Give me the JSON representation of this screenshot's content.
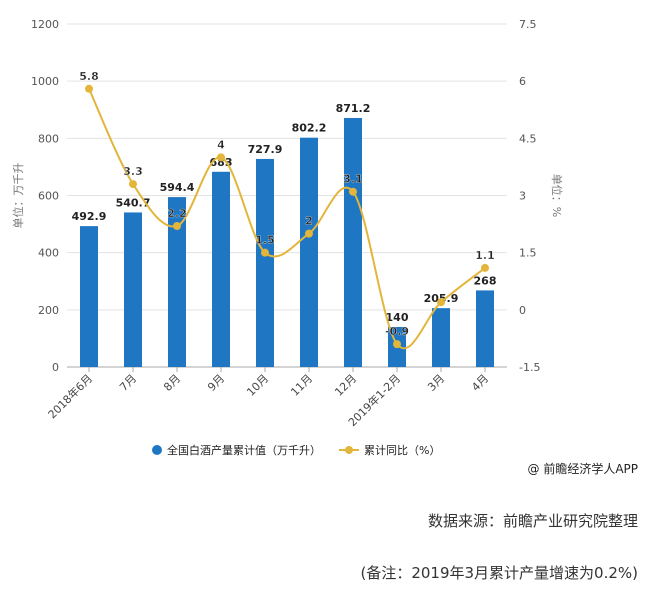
{
  "chart_data": {
    "type": "bar",
    "categories": [
      "2018年6月",
      "7月",
      "8月",
      "9月",
      "10月",
      "11月",
      "12月",
      "2019年1-2月",
      "3月",
      "4月"
    ],
    "series": [
      {
        "name": "全国白酒产量累计值（万千升）",
        "type": "bar",
        "axis": "left",
        "color": "#1f77c4",
        "values": [
          492.9,
          540.7,
          594.4,
          683,
          727.9,
          802.2,
          871.2,
          140,
          205.9,
          268
        ]
      },
      {
        "name": "累计同比（%）",
        "type": "line",
        "axis": "right",
        "color": "#e3b53a",
        "values": [
          5.8,
          3.3,
          2.2,
          4,
          1.5,
          2,
          3.1,
          -0.9,
          0.2,
          1.1
        ],
        "labels": [
          "5.8",
          "3.3",
          "2.2",
          "4",
          "1.5",
          "2",
          "3.1",
          "-0.9",
          "",
          "1.1"
        ]
      }
    ],
    "ylabel": "单位：万千升",
    "y2label": "单位：%",
    "ylim": [
      0,
      1200
    ],
    "yticks": [
      0,
      200,
      400,
      600,
      800,
      1000,
      1200
    ],
    "y2lim": [
      -1.5,
      7.5
    ],
    "y2ticks": [
      -1.5,
      0,
      1.5,
      3,
      4.5,
      6,
      7.5
    ],
    "grid": true,
    "legend_position": "bottom"
  },
  "credit": "@ 前瞻经济学人APP",
  "source": "数据来源：前瞻产业研究院整理",
  "remark": "(备注：2019年3月累计产量增速为0.2%)"
}
